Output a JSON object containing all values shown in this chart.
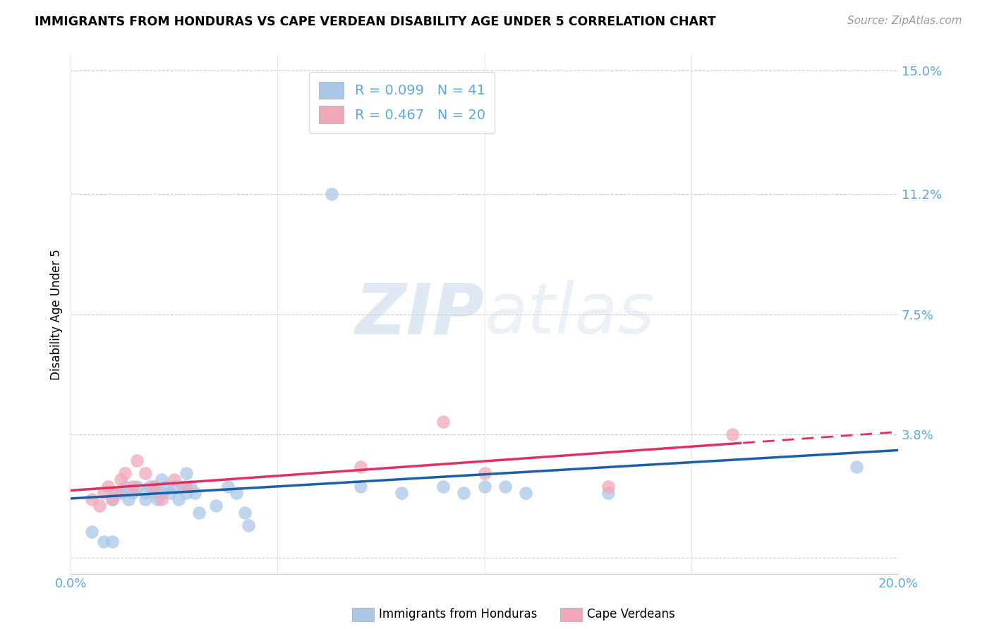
{
  "title": "IMMIGRANTS FROM HONDURAS VS CAPE VERDEAN DISABILITY AGE UNDER 5 CORRELATION CHART",
  "source": "Source: ZipAtlas.com",
  "ylabel": "Disability Age Under 5",
  "xlim": [
    0.0,
    0.2
  ],
  "ylim": [
    -0.005,
    0.155
  ],
  "ytick_vals": [
    0.0,
    0.038,
    0.075,
    0.112,
    0.15
  ],
  "ytick_labels": [
    "",
    "3.8%",
    "7.5%",
    "11.2%",
    "15.0%"
  ],
  "xtick_vals": [
    0.0,
    0.05,
    0.1,
    0.15,
    0.2
  ],
  "xtick_labels": [
    "0.0%",
    "",
    "",
    "",
    "20.0%"
  ],
  "blue_color": "#a8c8e8",
  "pink_color": "#f0a8b8",
  "blue_line_color": "#1a5fa8",
  "pink_line_color": "#e03060",
  "tick_color": "#5aaadd",
  "watermark_color": "#ccddef",
  "blue_scatter_x": [
    0.005,
    0.008,
    0.01,
    0.01,
    0.012,
    0.013,
    0.014,
    0.015,
    0.016,
    0.018,
    0.018,
    0.019,
    0.02,
    0.02,
    0.021,
    0.022,
    0.022,
    0.023,
    0.024,
    0.025,
    0.026,
    0.027,
    0.028,
    0.028,
    0.029,
    0.03,
    0.031,
    0.035,
    0.038,
    0.04,
    0.042,
    0.043,
    0.07,
    0.08,
    0.09,
    0.095,
    0.1,
    0.105,
    0.11,
    0.13,
    0.19
  ],
  "blue_scatter_y": [
    0.008,
    0.005,
    0.018,
    0.005,
    0.02,
    0.022,
    0.018,
    0.02,
    0.022,
    0.018,
    0.02,
    0.022,
    0.02,
    0.022,
    0.018,
    0.024,
    0.02,
    0.022,
    0.02,
    0.022,
    0.018,
    0.022,
    0.02,
    0.026,
    0.022,
    0.02,
    0.014,
    0.016,
    0.022,
    0.02,
    0.014,
    0.01,
    0.022,
    0.02,
    0.022,
    0.02,
    0.022,
    0.022,
    0.02,
    0.02,
    0.028
  ],
  "blue_outlier_x": [
    0.063
  ],
  "blue_outlier_y": [
    0.112
  ],
  "pink_scatter_x": [
    0.005,
    0.007,
    0.008,
    0.009,
    0.01,
    0.011,
    0.012,
    0.013,
    0.015,
    0.016,
    0.018,
    0.02,
    0.022,
    0.025,
    0.028,
    0.07,
    0.09,
    0.1,
    0.13,
    0.16
  ],
  "pink_scatter_y": [
    0.018,
    0.016,
    0.02,
    0.022,
    0.018,
    0.02,
    0.024,
    0.026,
    0.022,
    0.03,
    0.026,
    0.022,
    0.018,
    0.024,
    0.022,
    0.028,
    0.042,
    0.026,
    0.022,
    0.038
  ]
}
